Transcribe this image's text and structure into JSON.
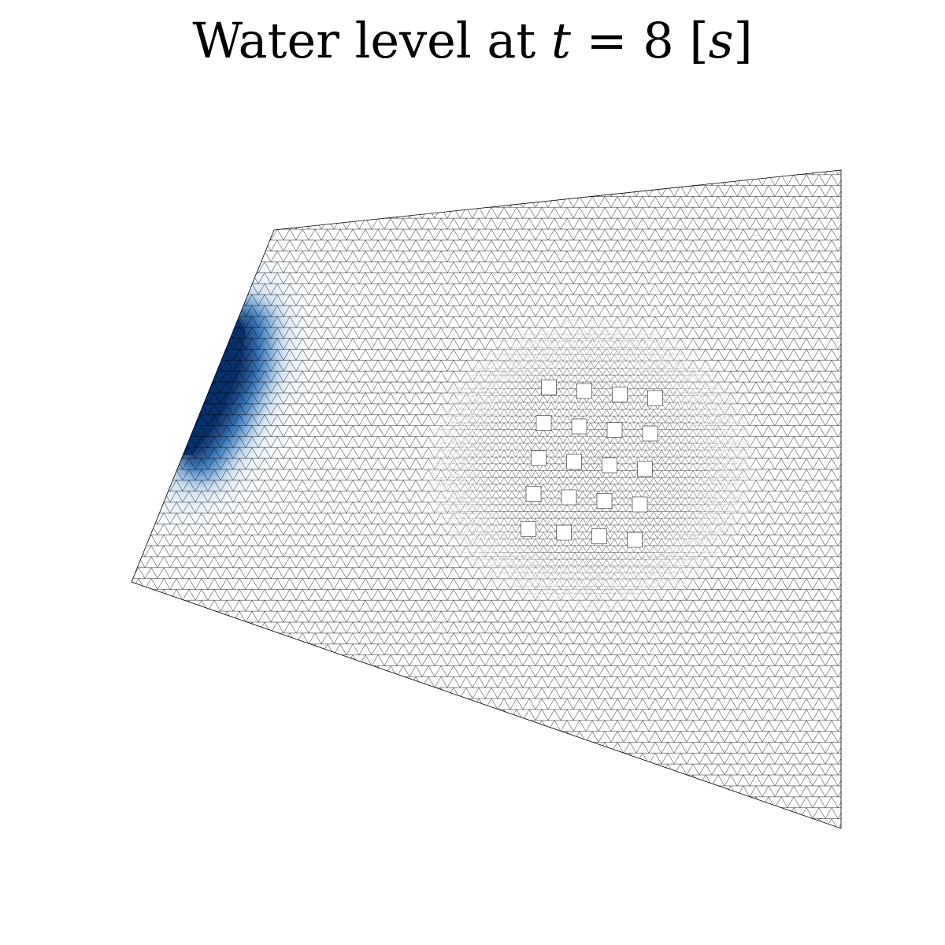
{
  "title": {
    "prefix": "Water level at ",
    "variable": "t",
    "equals": " = 8 ",
    "unit_open": "[",
    "unit": "s",
    "unit_close": "]"
  },
  "colors": {
    "mesh_line": "#000000",
    "background": "#ffffff",
    "water_dark": "#08306b",
    "water_mid": "#2f74c0",
    "water_light": "#c6dbef",
    "water_faint": "#e8f1fb"
  },
  "simulation": {
    "time_value": 8,
    "time_unit": "s",
    "obstacle_grid": {
      "rows": 5,
      "cols": 4
    }
  }
}
